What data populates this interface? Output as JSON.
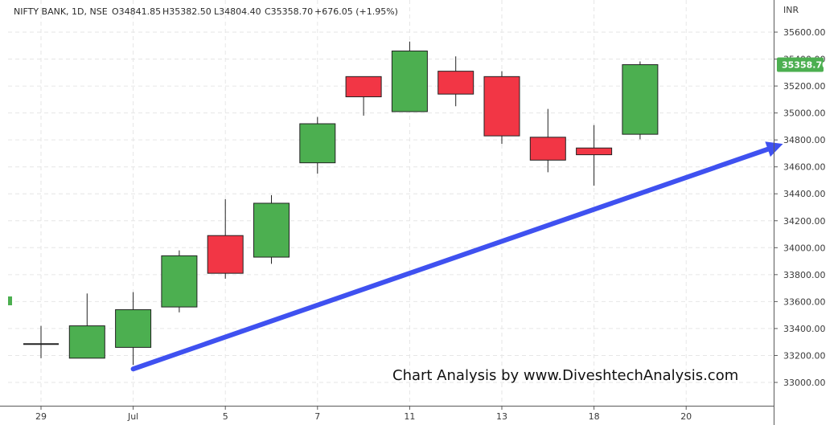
{
  "header": {
    "symbol": "NIFTY BANK, 1D, NSE",
    "open": "O34841.85",
    "high": "H35382.50",
    "low": "L34804.40",
    "close": "C35358.70",
    "change": "+676.05 (+1.95%)"
  },
  "watermark": "Chart Analysis by www.DiveshtechAnalysis.com",
  "price_tag": "35358.70",
  "currency": "INR",
  "colors": {
    "up": "#4caf50",
    "down": "#f23645",
    "trendline": "#3f51f0",
    "grid": "#e6e6e6",
    "price_tag_bg": "#4caf50"
  },
  "chart_data": {
    "type": "candlestick",
    "ylim": [
      32870,
      35720
    ],
    "y_ticks": [
      {
        "value": 33000,
        "label": "33000.00"
      },
      {
        "value": 33200,
        "label": "33200.00"
      },
      {
        "value": 33400,
        "label": "33400.00"
      },
      {
        "value": 33600,
        "label": "33600.00"
      },
      {
        "value": 33800,
        "label": "33800.00"
      },
      {
        "value": 34000,
        "label": "34000.00"
      },
      {
        "value": 34200,
        "label": "34200.00"
      },
      {
        "value": 34400,
        "label": "34400.00"
      },
      {
        "value": 34600,
        "label": "34600.00"
      },
      {
        "value": 34800,
        "label": "34800.00"
      },
      {
        "value": 35000,
        "label": "35000.00"
      },
      {
        "value": 35200,
        "label": "35200.00"
      },
      {
        "value": 35400,
        "label": "35400.00"
      },
      {
        "value": 35600,
        "label": "35600.00"
      }
    ],
    "x_ticks": [
      {
        "index": 0,
        "label": "29"
      },
      {
        "index": 2,
        "label": "Jul"
      },
      {
        "index": 4,
        "label": "5"
      },
      {
        "index": 6,
        "label": "7"
      },
      {
        "index": 8,
        "label": "11"
      },
      {
        "index": 10,
        "label": "13"
      },
      {
        "index": 12,
        "label": "18"
      },
      {
        "index": 14,
        "label": "20"
      }
    ],
    "candles": [
      {
        "index": 0,
        "open": 33280,
        "high": 33420,
        "low": 33180,
        "close": 33285
      },
      {
        "index": 1,
        "open": 33180,
        "high": 33660,
        "low": 33180,
        "close": 33420
      },
      {
        "index": 2,
        "open": 33260,
        "high": 33670,
        "low": 33130,
        "close": 33540
      },
      {
        "index": 3,
        "open": 33560,
        "high": 33980,
        "low": 33520,
        "close": 33940
      },
      {
        "index": 4,
        "open": 34090,
        "high": 34360,
        "low": 33770,
        "close": 33810
      },
      {
        "index": 5,
        "open": 33930,
        "high": 34390,
        "low": 33880,
        "close": 34330
      },
      {
        "index": 6,
        "open": 34630,
        "high": 34970,
        "low": 34550,
        "close": 34920
      },
      {
        "index": 7,
        "open": 35270,
        "high": 35270,
        "low": 34980,
        "close": 35120
      },
      {
        "index": 8,
        "open": 35010,
        "high": 35530,
        "low": 35010,
        "close": 35460
      },
      {
        "index": 9,
        "open": 35310,
        "high": 35420,
        "low": 35050,
        "close": 35140
      },
      {
        "index": 10,
        "open": 35270,
        "high": 35310,
        "low": 34770,
        "close": 34830
      },
      {
        "index": 11,
        "open": 34820,
        "high": 35030,
        "low": 34560,
        "close": 34650
      },
      {
        "index": 12,
        "open": 34740,
        "high": 34910,
        "low": 34460,
        "close": 34690
      },
      {
        "index": 13,
        "open": 34841.85,
        "high": 35382.5,
        "low": 34804.4,
        "close": 35358.7
      }
    ],
    "trendline": {
      "from": {
        "index": 2,
        "value": 33100
      },
      "to": {
        "index": 16.1,
        "value": 34770
      }
    }
  }
}
